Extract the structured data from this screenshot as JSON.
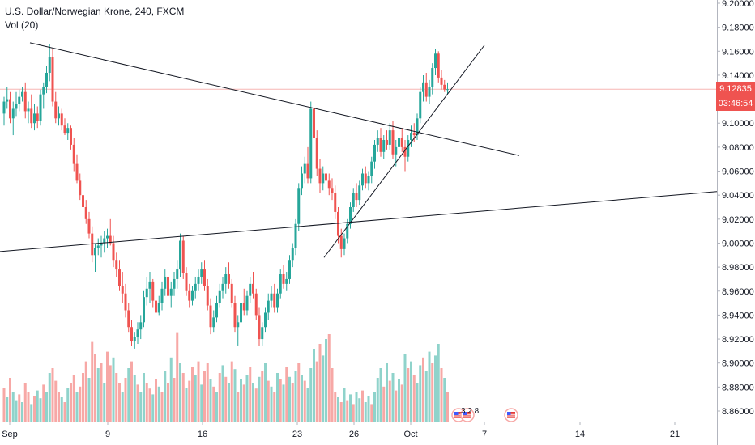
{
  "legend": {
    "title": "U.S. Dollar/Norwegian Krone, 240, FXCM",
    "volume": "Vol (20)"
  },
  "colors": {
    "up": "#26a69a",
    "down": "#ef5350",
    "up_volume": "#8fd3cb",
    "down_volume": "#f7a8a6",
    "trendline": "#131722",
    "last_price_line": "#f7b6b4",
    "price_tag_bg": "#ef5350"
  },
  "price_tags": {
    "last_price": "9.12835",
    "countdown": "03:46:54"
  },
  "events": {
    "flag_cluster_labels": "3 2 8",
    "flag_icon": "us-flag-icon"
  },
  "chart_data": {
    "type": "candlestick",
    "title": "U.S. Dollar/Norwegian Krone, 240, FXCM",
    "y_axis": {
      "ticks": [
        "8.86000",
        "8.88000",
        "8.90000",
        "8.92000",
        "8.94000",
        "8.96000",
        "8.98000",
        "9.00000",
        "9.02000",
        "9.04000",
        "9.06000",
        "9.08000",
        "9.10000",
        "9.12000",
        "9.14000",
        "9.16000",
        "9.18000",
        "9.20000"
      ],
      "range": [
        8.855,
        9.2
      ]
    },
    "x_axis": {
      "ticks": [
        "Sep",
        "9",
        "16",
        "23",
        "26",
        "Oct",
        "7",
        "14",
        "21"
      ]
    },
    "ohlc": [
      [
        9.108,
        9.122,
        9.098,
        9.118
      ],
      [
        9.118,
        9.13,
        9.112,
        9.12
      ],
      [
        9.12,
        9.126,
        9.1,
        9.104
      ],
      [
        9.104,
        9.118,
        9.09,
        9.112
      ],
      [
        9.112,
        9.126,
        9.106,
        9.116
      ],
      [
        9.116,
        9.128,
        9.11,
        9.122
      ],
      [
        9.122,
        9.13,
        9.118,
        9.126
      ],
      [
        9.126,
        9.134,
        9.104,
        9.11
      ],
      [
        9.11,
        9.118,
        9.1,
        9.112
      ],
      [
        9.112,
        9.124,
        9.096,
        9.1
      ],
      [
        9.1,
        9.116,
        9.094,
        9.108
      ],
      [
        9.108,
        9.114,
        9.096,
        9.102
      ],
      [
        9.102,
        9.128,
        9.098,
        9.124
      ],
      [
        9.124,
        9.134,
        9.112,
        9.13
      ],
      [
        9.13,
        9.148,
        9.125,
        9.142
      ],
      [
        9.142,
        9.166,
        9.135,
        9.155
      ],
      [
        9.155,
        9.162,
        9.114,
        9.118
      ],
      [
        9.118,
        9.126,
        9.1,
        9.104
      ],
      [
        9.104,
        9.114,
        9.098,
        9.108
      ],
      [
        9.108,
        9.112,
        9.094,
        9.098
      ],
      [
        9.098,
        9.104,
        9.09,
        9.092
      ],
      [
        9.092,
        9.1,
        9.086,
        9.096
      ],
      [
        9.096,
        9.098,
        9.078,
        9.082
      ],
      [
        9.082,
        9.088,
        9.06,
        9.066
      ],
      [
        9.066,
        9.074,
        9.05,
        9.052
      ],
      [
        9.052,
        9.058,
        9.036,
        9.04
      ],
      [
        9.04,
        9.046,
        9.026,
        9.03
      ],
      [
        9.03,
        9.036,
        9.016,
        9.02
      ],
      [
        9.02,
        9.026,
        9.004,
        9.008
      ],
      [
        9.008,
        9.014,
        8.984,
        8.99
      ],
      [
        8.99,
        9.0,
        8.976,
        8.996
      ],
      [
        8.996,
        9.004,
        8.99,
        8.998
      ],
      [
        8.998,
        9.006,
        8.988,
        9.0
      ],
      [
        9.0,
        9.01,
        8.992,
        9.004
      ],
      [
        9.004,
        9.012,
        8.996,
        9.006
      ],
      [
        9.006,
        9.02,
        8.998,
        9.0
      ],
      [
        9.0,
        9.006,
        8.98,
        8.986
      ],
      [
        8.986,
        8.992,
        8.972,
        8.978
      ],
      [
        8.978,
        8.986,
        8.96,
        8.964
      ],
      [
        8.964,
        8.976,
        8.95,
        8.958
      ],
      [
        8.958,
        8.966,
        8.938,
        8.944
      ],
      [
        8.944,
        8.95,
        8.926,
        8.93
      ],
      [
        8.93,
        8.936,
        8.914,
        8.918
      ],
      [
        8.918,
        8.926,
        8.912,
        8.922
      ],
      [
        8.922,
        8.934,
        8.916,
        8.928
      ],
      [
        8.928,
        8.94,
        8.92,
        8.934
      ],
      [
        8.934,
        8.96,
        8.93,
        8.955
      ],
      [
        8.955,
        8.972,
        8.948,
        8.962
      ],
      [
        8.962,
        8.976,
        8.95,
        8.968
      ],
      [
        8.968,
        8.97,
        8.946,
        8.952
      ],
      [
        8.952,
        8.958,
        8.936,
        8.942
      ],
      [
        8.942,
        8.956,
        8.94,
        8.95
      ],
      [
        8.95,
        8.968,
        8.944,
        8.962
      ],
      [
        8.962,
        8.978,
        8.956,
        8.972
      ],
      [
        8.972,
        8.98,
        8.95,
        8.956
      ],
      [
        8.956,
        8.968,
        8.946,
        8.962
      ],
      [
        8.962,
        8.976,
        8.956,
        8.97
      ],
      [
        8.97,
        8.986,
        8.962,
        8.978
      ],
      [
        8.978,
        9.008,
        8.972,
        9.002
      ],
      [
        9.002,
        9.006,
        8.97,
        8.975
      ],
      [
        8.975,
        8.98,
        8.956,
        8.96
      ],
      [
        8.96,
        8.966,
        8.946,
        8.952
      ],
      [
        8.952,
        8.964,
        8.948,
        8.96
      ],
      [
        8.96,
        8.972,
        8.954,
        8.966
      ],
      [
        8.966,
        8.978,
        8.96,
        8.972
      ],
      [
        8.972,
        8.984,
        8.966,
        8.978
      ],
      [
        8.978,
        8.986,
        8.96,
        8.964
      ],
      [
        8.964,
        8.97,
        8.944,
        8.948
      ],
      [
        8.948,
        8.954,
        8.924,
        8.93
      ],
      [
        8.93,
        8.944,
        8.926,
        8.938
      ],
      [
        8.938,
        8.956,
        8.934,
        8.95
      ],
      [
        8.95,
        8.966,
        8.946,
        8.96
      ],
      [
        8.96,
        8.972,
        8.954,
        8.966
      ],
      [
        8.966,
        8.98,
        8.958,
        8.974
      ],
      [
        8.974,
        8.984,
        8.962,
        8.966
      ],
      [
        8.966,
        8.97,
        8.946,
        8.95
      ],
      [
        8.95,
        8.956,
        8.926,
        8.93
      ],
      [
        8.93,
        8.94,
        8.914,
        8.934
      ],
      [
        8.934,
        8.956,
        8.93,
        8.95
      ],
      [
        8.95,
        8.962,
        8.94,
        8.944
      ],
      [
        8.944,
        8.96,
        8.94,
        8.956
      ],
      [
        8.956,
        8.972,
        8.95,
        8.966
      ],
      [
        8.966,
        8.976,
        8.954,
        8.958
      ],
      [
        8.958,
        8.962,
        8.936,
        8.94
      ],
      [
        8.94,
        8.946,
        8.914,
        8.92
      ],
      [
        8.92,
        8.934,
        8.914,
        8.93
      ],
      [
        8.93,
        8.946,
        8.926,
        8.942
      ],
      [
        8.942,
        8.958,
        8.936,
        8.952
      ],
      [
        8.952,
        8.964,
        8.946,
        8.958
      ],
      [
        8.958,
        8.966,
        8.942,
        8.946
      ],
      [
        8.946,
        8.962,
        8.942,
        8.958
      ],
      [
        8.958,
        8.978,
        8.954,
        8.974
      ],
      [
        8.974,
        8.982,
        8.962,
        8.966
      ],
      [
        8.966,
        8.976,
        8.96,
        8.97
      ],
      [
        8.97,
        8.99,
        8.966,
        8.986
      ],
      [
        8.986,
        9.0,
        8.98,
        8.996
      ],
      [
        8.996,
        9.02,
        8.99,
        9.016
      ],
      [
        9.016,
        9.05,
        9.01,
        9.046
      ],
      [
        9.046,
        9.064,
        9.04,
        9.058
      ],
      [
        9.058,
        9.072,
        9.05,
        9.066
      ],
      [
        9.066,
        9.08,
        9.05,
        9.054
      ],
      [
        9.054,
        9.118,
        9.05,
        9.112
      ],
      [
        9.112,
        9.118,
        9.082,
        9.088
      ],
      [
        9.088,
        9.094,
        9.056,
        9.062
      ],
      [
        9.062,
        9.07,
        9.042,
        9.05
      ],
      [
        9.05,
        9.064,
        9.044,
        9.058
      ],
      [
        9.058,
        9.07,
        9.05,
        9.052
      ],
      [
        9.052,
        9.058,
        9.04,
        9.046
      ],
      [
        9.046,
        9.054,
        9.036,
        9.042
      ],
      [
        9.042,
        9.048,
        9.02,
        9.026
      ],
      [
        9.026,
        9.03,
        9.0,
        9.006
      ],
      [
        9.006,
        9.012,
        8.988,
        8.995
      ],
      [
        8.995,
        9.008,
        8.99,
        9.004
      ],
      [
        9.004,
        9.02,
        9.0,
        9.016
      ],
      [
        9.016,
        9.034,
        9.012,
        9.03
      ],
      [
        9.03,
        9.046,
        9.026,
        9.042
      ],
      [
        9.042,
        9.05,
        9.03,
        9.036
      ],
      [
        9.036,
        9.052,
        9.032,
        9.048
      ],
      [
        9.048,
        9.062,
        9.044,
        9.058
      ],
      [
        9.058,
        9.064,
        9.046,
        9.05
      ],
      [
        9.05,
        9.06,
        9.044,
        9.056
      ],
      [
        9.056,
        9.072,
        9.05,
        9.068
      ],
      [
        9.068,
        9.086,
        9.062,
        9.082
      ],
      [
        9.082,
        9.094,
        9.076,
        9.088
      ],
      [
        9.088,
        9.096,
        9.072,
        9.076
      ],
      [
        9.076,
        9.09,
        9.07,
        9.086
      ],
      [
        9.086,
        9.094,
        9.078,
        9.082
      ],
      [
        9.082,
        9.1,
        9.078,
        9.094
      ],
      [
        9.094,
        9.102,
        9.07,
        9.074
      ],
      [
        9.074,
        9.086,
        9.064,
        9.08
      ],
      [
        9.08,
        9.092,
        9.072,
        9.088
      ],
      [
        9.088,
        9.096,
        9.076,
        9.08
      ],
      [
        9.08,
        9.086,
        9.06,
        9.072
      ],
      [
        9.072,
        9.09,
        9.068,
        9.086
      ],
      [
        9.086,
        9.098,
        9.08,
        9.092
      ],
      [
        9.092,
        9.1,
        9.084,
        9.09
      ],
      [
        9.09,
        9.108,
        9.086,
        9.104
      ],
      [
        9.104,
        9.13,
        9.1,
        9.126
      ],
      [
        9.126,
        9.14,
        9.118,
        9.134
      ],
      [
        9.134,
        9.142,
        9.118,
        9.122
      ],
      [
        9.122,
        9.136,
        9.116,
        9.13
      ],
      [
        9.13,
        9.15,
        9.124,
        9.146
      ],
      [
        9.146,
        9.162,
        9.14,
        9.158
      ],
      [
        9.158,
        9.16,
        9.134,
        9.138
      ],
      [
        9.138,
        9.144,
        9.128,
        9.132
      ],
      [
        9.132,
        9.136,
        9.126,
        9.128
      ],
      [
        9.128,
        9.134,
        9.124,
        9.12835
      ]
    ],
    "volume": [
      [
        0.35,
        "down"
      ],
      [
        0.25,
        "up"
      ],
      [
        0.45,
        "down"
      ],
      [
        0.3,
        "up"
      ],
      [
        0.22,
        "up"
      ],
      [
        0.28,
        "down"
      ],
      [
        0.2,
        "up"
      ],
      [
        0.4,
        "down"
      ],
      [
        0.3,
        "down"
      ],
      [
        0.18,
        "up"
      ],
      [
        0.26,
        "down"
      ],
      [
        0.32,
        "up"
      ],
      [
        0.24,
        "up"
      ],
      [
        0.38,
        "down"
      ],
      [
        0.3,
        "up"
      ],
      [
        0.5,
        "up"
      ],
      [
        0.55,
        "down"
      ],
      [
        0.42,
        "down"
      ],
      [
        0.3,
        "down"
      ],
      [
        0.25,
        "up"
      ],
      [
        0.2,
        "down"
      ],
      [
        0.35,
        "up"
      ],
      [
        0.4,
        "down"
      ],
      [
        0.48,
        "down"
      ],
      [
        0.3,
        "up"
      ],
      [
        0.36,
        "down"
      ],
      [
        0.5,
        "down"
      ],
      [
        0.62,
        "down"
      ],
      [
        0.45,
        "up"
      ],
      [
        0.82,
        "down"
      ],
      [
        0.7,
        "down"
      ],
      [
        0.55,
        "up"
      ],
      [
        0.6,
        "down"
      ],
      [
        0.4,
        "up"
      ],
      [
        0.72,
        "down"
      ],
      [
        0.58,
        "down"
      ],
      [
        0.66,
        "up"
      ],
      [
        0.5,
        "down"
      ],
      [
        0.4,
        "down"
      ],
      [
        0.3,
        "up"
      ],
      [
        0.45,
        "down"
      ],
      [
        0.55,
        "up"
      ],
      [
        0.62,
        "down"
      ],
      [
        0.48,
        "up"
      ],
      [
        0.38,
        "down"
      ],
      [
        0.3,
        "up"
      ],
      [
        0.5,
        "up"
      ],
      [
        0.4,
        "down"
      ],
      [
        0.34,
        "down"
      ],
      [
        0.28,
        "up"
      ],
      [
        0.44,
        "down"
      ],
      [
        0.36,
        "up"
      ],
      [
        0.3,
        "down"
      ],
      [
        0.52,
        "up"
      ],
      [
        0.4,
        "down"
      ],
      [
        0.66,
        "up"
      ],
      [
        0.45,
        "down"
      ],
      [
        0.92,
        "down"
      ],
      [
        0.6,
        "up"
      ],
      [
        0.5,
        "down"
      ],
      [
        0.35,
        "up"
      ],
      [
        0.42,
        "down"
      ],
      [
        0.56,
        "down"
      ],
      [
        0.48,
        "up"
      ],
      [
        0.62,
        "down"
      ],
      [
        0.38,
        "up"
      ],
      [
        0.52,
        "down"
      ],
      [
        0.6,
        "down"
      ],
      [
        0.44,
        "up"
      ],
      [
        0.36,
        "down"
      ],
      [
        0.3,
        "up"
      ],
      [
        0.5,
        "down"
      ],
      [
        0.58,
        "up"
      ],
      [
        0.46,
        "down"
      ],
      [
        0.4,
        "up"
      ],
      [
        0.62,
        "down"
      ],
      [
        0.54,
        "up"
      ],
      [
        0.3,
        "down"
      ],
      [
        0.44,
        "up"
      ],
      [
        0.38,
        "down"
      ],
      [
        0.48,
        "up"
      ],
      [
        0.56,
        "down"
      ],
      [
        0.4,
        "up"
      ],
      [
        0.34,
        "down"
      ],
      [
        0.46,
        "up"
      ],
      [
        0.52,
        "down"
      ],
      [
        0.6,
        "up"
      ],
      [
        0.42,
        "down"
      ],
      [
        0.36,
        "up"
      ],
      [
        0.3,
        "down"
      ],
      [
        0.5,
        "up"
      ],
      [
        0.44,
        "down"
      ],
      [
        0.38,
        "up"
      ],
      [
        0.56,
        "down"
      ],
      [
        0.46,
        "up"
      ],
      [
        0.4,
        "down"
      ],
      [
        0.52,
        "up"
      ],
      [
        0.6,
        "down"
      ],
      [
        0.48,
        "up"
      ],
      [
        0.42,
        "down"
      ],
      [
        0.35,
        "up"
      ],
      [
        0.55,
        "up"
      ],
      [
        0.75,
        "up"
      ],
      [
        0.62,
        "down"
      ],
      [
        0.8,
        "down"
      ],
      [
        0.68,
        "up"
      ],
      [
        0.85,
        "up"
      ],
      [
        0.9,
        "down"
      ],
      [
        0.55,
        "down"
      ],
      [
        0.3,
        "down"
      ],
      [
        0.25,
        "up"
      ],
      [
        0.2,
        "down"
      ],
      [
        0.35,
        "up"
      ],
      [
        0.22,
        "down"
      ],
      [
        0.28,
        "up"
      ],
      [
        0.18,
        "down"
      ],
      [
        0.3,
        "up"
      ],
      [
        0.24,
        "up"
      ],
      [
        0.32,
        "down"
      ],
      [
        0.2,
        "up"
      ],
      [
        0.26,
        "up"
      ],
      [
        0.18,
        "down"
      ],
      [
        0.3,
        "up"
      ],
      [
        0.45,
        "up"
      ],
      [
        0.55,
        "up"
      ],
      [
        0.36,
        "down"
      ],
      [
        0.6,
        "up"
      ],
      [
        0.42,
        "down"
      ],
      [
        0.5,
        "up"
      ],
      [
        0.32,
        "down"
      ],
      [
        0.44,
        "up"
      ],
      [
        0.38,
        "down"
      ],
      [
        0.7,
        "up"
      ],
      [
        0.55,
        "down"
      ],
      [
        0.62,
        "up"
      ],
      [
        0.48,
        "down"
      ],
      [
        0.4,
        "up"
      ],
      [
        0.58,
        "up"
      ],
      [
        0.66,
        "down"
      ],
      [
        0.52,
        "up"
      ],
      [
        0.72,
        "up"
      ],
      [
        0.6,
        "down"
      ],
      [
        0.68,
        "up"
      ],
      [
        0.8,
        "up"
      ],
      [
        0.55,
        "down"
      ],
      [
        0.45,
        "up"
      ],
      [
        0.3,
        "down"
      ]
    ],
    "trendlines": [
      {
        "name": "descending-resistance",
        "from": [
          9.167
        ],
        "to": [
          9.073
        ]
      },
      {
        "name": "ascending-support-short",
        "from": [
          8.988
        ],
        "to": [
          9.165
        ]
      },
      {
        "name": "rising-support-long",
        "from": [
          8.993
        ],
        "to": [
          9.043
        ]
      }
    ],
    "last_price": 9.12835
  }
}
